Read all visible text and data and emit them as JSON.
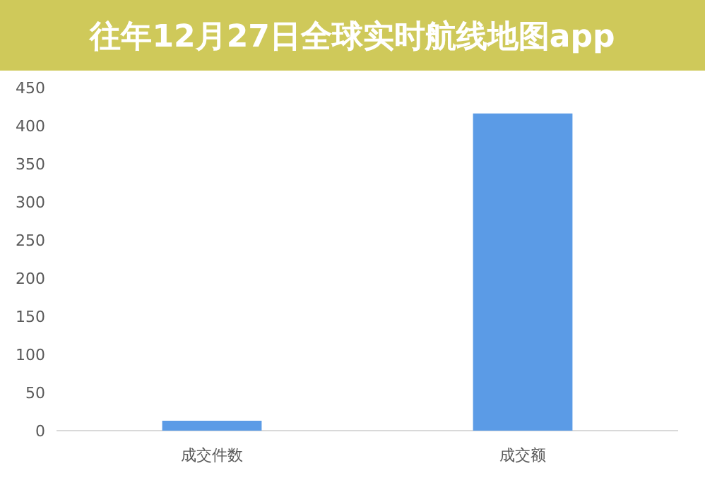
{
  "chart_data": {
    "type": "bar",
    "title": "往年12月27日全球实时航线地图app",
    "categories": [
      "成交件数",
      "成交额"
    ],
    "values": [
      13,
      416
    ],
    "color": "#5b9be6",
    "ylim": [
      0,
      450
    ],
    "yticks": [
      0,
      50,
      100,
      150,
      200,
      250,
      300,
      350,
      400,
      450
    ],
    "grid": false
  }
}
